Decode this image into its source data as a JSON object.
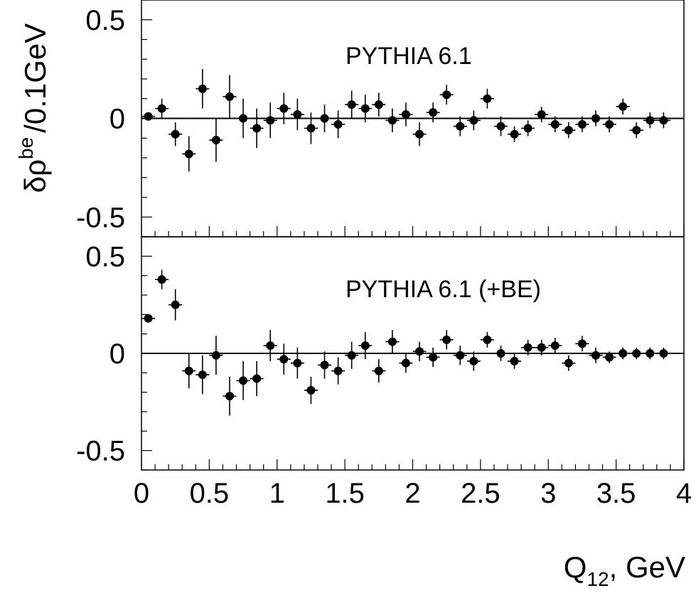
{
  "chart_data": [
    {
      "type": "scatter",
      "annotation": "PYTHIA 6.1",
      "ylabel": "δρ^be /0.1GeV",
      "xlim": [
        0,
        4
      ],
      "ylim": [
        -0.6,
        0.6
      ],
      "y_ticks": [
        {
          "value": 0.5,
          "label": "0.5"
        },
        {
          "value": 0,
          "label": "0"
        },
        {
          "value": -0.5,
          "label": "-0.5"
        }
      ],
      "reference_line": 0,
      "x_bin_halfwidth": 0.05,
      "points": [
        {
          "x": 0.05,
          "y": 0.01,
          "err": 0.02
        },
        {
          "x": 0.15,
          "y": 0.05,
          "err": 0.05
        },
        {
          "x": 0.25,
          "y": -0.08,
          "err": 0.06
        },
        {
          "x": 0.35,
          "y": -0.18,
          "err": 0.09
        },
        {
          "x": 0.45,
          "y": 0.15,
          "err": 0.1
        },
        {
          "x": 0.55,
          "y": -0.11,
          "err": 0.11
        },
        {
          "x": 0.65,
          "y": 0.11,
          "err": 0.11
        },
        {
          "x": 0.75,
          "y": 0.0,
          "err": 0.1
        },
        {
          "x": 0.85,
          "y": -0.05,
          "err": 0.1
        },
        {
          "x": 0.95,
          "y": -0.01,
          "err": 0.09
        },
        {
          "x": 1.05,
          "y": 0.05,
          "err": 0.08
        },
        {
          "x": 1.15,
          "y": 0.02,
          "err": 0.08
        },
        {
          "x": 1.25,
          "y": -0.05,
          "err": 0.08
        },
        {
          "x": 1.35,
          "y": 0.0,
          "err": 0.07
        },
        {
          "x": 1.45,
          "y": -0.03,
          "err": 0.07
        },
        {
          "x": 1.55,
          "y": 0.07,
          "err": 0.07
        },
        {
          "x": 1.65,
          "y": 0.05,
          "err": 0.07
        },
        {
          "x": 1.75,
          "y": 0.07,
          "err": 0.06
        },
        {
          "x": 1.85,
          "y": -0.01,
          "err": 0.06
        },
        {
          "x": 1.95,
          "y": 0.02,
          "err": 0.06
        },
        {
          "x": 2.05,
          "y": -0.08,
          "err": 0.06
        },
        {
          "x": 2.15,
          "y": 0.03,
          "err": 0.05
        },
        {
          "x": 2.25,
          "y": 0.12,
          "err": 0.05
        },
        {
          "x": 2.35,
          "y": -0.04,
          "err": 0.05
        },
        {
          "x": 2.45,
          "y": -0.01,
          "err": 0.05
        },
        {
          "x": 2.55,
          "y": 0.1,
          "err": 0.05
        },
        {
          "x": 2.65,
          "y": -0.04,
          "err": 0.05
        },
        {
          "x": 2.75,
          "y": -0.08,
          "err": 0.04
        },
        {
          "x": 2.85,
          "y": -0.05,
          "err": 0.04
        },
        {
          "x": 2.95,
          "y": 0.02,
          "err": 0.04
        },
        {
          "x": 3.05,
          "y": -0.03,
          "err": 0.04
        },
        {
          "x": 3.15,
          "y": -0.06,
          "err": 0.04
        },
        {
          "x": 3.25,
          "y": -0.03,
          "err": 0.04
        },
        {
          "x": 3.35,
          "y": 0.0,
          "err": 0.04
        },
        {
          "x": 3.45,
          "y": -0.03,
          "err": 0.04
        },
        {
          "x": 3.55,
          "y": 0.06,
          "err": 0.04
        },
        {
          "x": 3.65,
          "y": -0.06,
          "err": 0.04
        },
        {
          "x": 3.75,
          "y": -0.01,
          "err": 0.04
        },
        {
          "x": 3.85,
          "y": -0.01,
          "err": 0.04
        }
      ]
    },
    {
      "type": "scatter",
      "annotation": "PYTHIA 6.1 (+BE)",
      "xlabel": "Q_12, GeV",
      "xlim": [
        0,
        4
      ],
      "ylim": [
        -0.6,
        0.6
      ],
      "x_ticks": [
        {
          "value": 0,
          "label": "0"
        },
        {
          "value": 0.5,
          "label": "0.5"
        },
        {
          "value": 1,
          "label": "1"
        },
        {
          "value": 1.5,
          "label": "1.5"
        },
        {
          "value": 2,
          "label": "2"
        },
        {
          "value": 2.5,
          "label": "2.5"
        },
        {
          "value": 3,
          "label": "3"
        },
        {
          "value": 3.5,
          "label": "3.5"
        },
        {
          "value": 4,
          "label": "4"
        }
      ],
      "y_ticks": [
        {
          "value": 0.5,
          "label": "0.5"
        },
        {
          "value": 0,
          "label": "0"
        },
        {
          "value": -0.5,
          "label": "-0.5"
        }
      ],
      "reference_line": 0,
      "x_bin_halfwidth": 0.05,
      "points": [
        {
          "x": 0.05,
          "y": 0.18,
          "err": 0.02
        },
        {
          "x": 0.15,
          "y": 0.38,
          "err": 0.05
        },
        {
          "x": 0.25,
          "y": 0.25,
          "err": 0.08
        },
        {
          "x": 0.35,
          "y": -0.09,
          "err": 0.09
        },
        {
          "x": 0.45,
          "y": -0.11,
          "err": 0.1
        },
        {
          "x": 0.55,
          "y": -0.01,
          "err": 0.1
        },
        {
          "x": 0.65,
          "y": -0.22,
          "err": 0.1
        },
        {
          "x": 0.75,
          "y": -0.14,
          "err": 0.1
        },
        {
          "x": 0.85,
          "y": -0.13,
          "err": 0.09
        },
        {
          "x": 0.95,
          "y": 0.04,
          "err": 0.08
        },
        {
          "x": 1.05,
          "y": -0.03,
          "err": 0.08
        },
        {
          "x": 1.15,
          "y": -0.05,
          "err": 0.08
        },
        {
          "x": 1.25,
          "y": -0.19,
          "err": 0.07
        },
        {
          "x": 1.35,
          "y": -0.06,
          "err": 0.07
        },
        {
          "x": 1.45,
          "y": -0.09,
          "err": 0.07
        },
        {
          "x": 1.55,
          "y": -0.01,
          "err": 0.07
        },
        {
          "x": 1.65,
          "y": 0.04,
          "err": 0.07
        },
        {
          "x": 1.75,
          "y": -0.09,
          "err": 0.06
        },
        {
          "x": 1.85,
          "y": 0.06,
          "err": 0.06
        },
        {
          "x": 1.95,
          "y": -0.05,
          "err": 0.05
        },
        {
          "x": 2.05,
          "y": 0.01,
          "err": 0.05
        },
        {
          "x": 2.15,
          "y": -0.02,
          "err": 0.05
        },
        {
          "x": 2.25,
          "y": 0.07,
          "err": 0.05
        },
        {
          "x": 2.35,
          "y": -0.01,
          "err": 0.05
        },
        {
          "x": 2.45,
          "y": -0.04,
          "err": 0.05
        },
        {
          "x": 2.55,
          "y": 0.07,
          "err": 0.04
        },
        {
          "x": 2.65,
          "y": 0.0,
          "err": 0.04
        },
        {
          "x": 2.75,
          "y": -0.04,
          "err": 0.04
        },
        {
          "x": 2.85,
          "y": 0.03,
          "err": 0.04
        },
        {
          "x": 2.95,
          "y": 0.03,
          "err": 0.04
        },
        {
          "x": 3.05,
          "y": 0.04,
          "err": 0.04
        },
        {
          "x": 3.15,
          "y": -0.05,
          "err": 0.04
        },
        {
          "x": 3.25,
          "y": 0.05,
          "err": 0.04
        },
        {
          "x": 3.35,
          "y": -0.01,
          "err": 0.04
        },
        {
          "x": 3.45,
          "y": -0.02,
          "err": 0.03
        },
        {
          "x": 3.55,
          "y": 0.0,
          "err": 0.03
        },
        {
          "x": 3.65,
          "y": 0.0,
          "err": 0.03
        },
        {
          "x": 3.75,
          "y": 0.0,
          "err": 0.03
        },
        {
          "x": 3.85,
          "y": 0.0,
          "err": 0.03
        }
      ]
    }
  ]
}
